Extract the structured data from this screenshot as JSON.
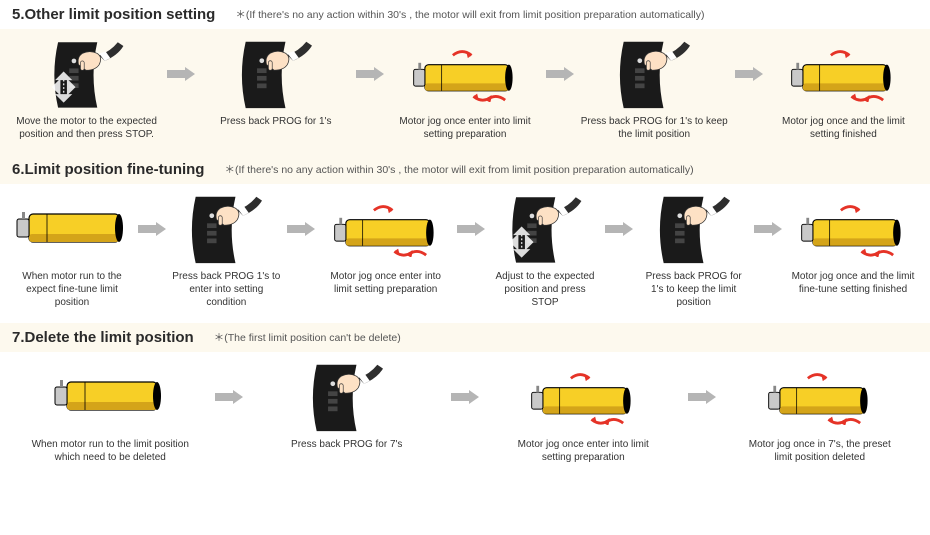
{
  "sections": [
    {
      "header_bg": "white",
      "row_bg": "cream",
      "title": "5.Other limit position setting",
      "note": "＊(If there's no any action within 30's , the motor will exit from limit position preparation automatically)",
      "steps": [
        {
          "icon": "press-device-direction",
          "caption": "Move the motor to the expected position and then press STOP."
        },
        {
          "icon": "press-device",
          "caption": "Press back PROG for 1's"
        },
        {
          "icon": "motor-jog",
          "caption": "Motor jog once enter into limit setting preparation"
        },
        {
          "icon": "press-device",
          "caption": "Press back PROG for 1's to keep the limit position"
        },
        {
          "icon": "motor-jog",
          "caption": "Motor jog once and the limit setting finished"
        }
      ]
    },
    {
      "header_bg": "cream",
      "row_bg": "white",
      "title": "6.Limit position fine-tuning",
      "note": "＊(If there's no any action within 30's , the motor will exit from limit position preparation automatically)",
      "steps": [
        {
          "icon": "motor",
          "caption": "When motor run to the expect fine-tune limit position"
        },
        {
          "icon": "press-device",
          "caption": "Press back PROG 1's to enter into setting condition"
        },
        {
          "icon": "motor-jog",
          "caption": "Motor jog once enter into limit setting preparation"
        },
        {
          "icon": "press-device-direction",
          "caption": "Adjust to the expected position and press STOP"
        },
        {
          "icon": "press-device",
          "caption": "Press back PROG for 1's to keep the limit position"
        },
        {
          "icon": "motor-jog",
          "caption": "Motor jog once and the limit fine-tune setting finished"
        }
      ]
    },
    {
      "header_bg": "cream",
      "row_bg": "white",
      "title": "7.Delete the limit position",
      "note": "＊(The first limit position can't be delete)",
      "steps": [
        {
          "icon": "motor",
          "caption": "When motor run to the limit position which need to be deleted"
        },
        {
          "icon": "press-device",
          "caption": "Press back PROG for 7's"
        },
        {
          "icon": "motor-jog",
          "caption": "Motor jog once enter into limit setting preparation"
        },
        {
          "icon": "motor-jog",
          "caption": "Motor jog once in 7's, the preset limit position deleted"
        }
      ]
    }
  ],
  "colors": {
    "cream": "#fdf9ee",
    "white": "#ffffff",
    "motor_yellow": "#f7cf26",
    "motor_shadow": "#d4a419",
    "device_black": "#1a1a1a",
    "hand_skin": "#fde1c5",
    "hand_cuff": "#2e2e2e",
    "cuff_white": "#ffffff",
    "red": "#e53327",
    "arrow_gray": "#b5b5b5"
  }
}
